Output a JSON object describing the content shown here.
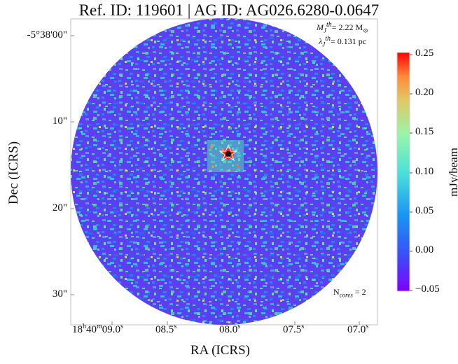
{
  "title": "Ref. ID: 119601 | AG ID: AG026.6280-0.0647",
  "annotations": {
    "mass_symbol": "M",
    "mass_sup": "th",
    "mass_sub": "J",
    "mass_value": "= 2.22 M",
    "mass_sun": "⊙",
    "length_symbol": "λ",
    "length_sup": "th",
    "length_sub": "J",
    "length_value": "= 0.131 pc",
    "ncores_label": "N",
    "ncores_sub": "cores",
    "ncores_value": " = 2"
  },
  "y_axis": {
    "label": "Dec (ICRS)",
    "ticks": [
      "-5°38'00\"",
      "10\"",
      "20\"",
      "30\""
    ]
  },
  "x_axis": {
    "label": "RA (ICRS)",
    "ticks": [
      {
        "main": "18",
        "h": "h",
        "main2": "40",
        "m": "m",
        "main3": "09.0",
        "s": "s"
      },
      {
        "main": "08.5",
        "s": "s"
      },
      {
        "main": "08.0",
        "s": "s"
      },
      {
        "main": "07.5",
        "s": "s"
      },
      {
        "main": "07.0",
        "s": "s"
      }
    ]
  },
  "colorbar": {
    "label": "mJy/beam",
    "ticks": [
      "0.25",
      "0.20",
      "0.15",
      "0.10",
      "0.05",
      "0.00",
      "−0.05"
    ],
    "range": [
      -0.05,
      0.25
    ],
    "colormap": "rainbow"
  },
  "colors": {
    "background_noise": "#5a3ef0",
    "noise_green": "#4ee0b0",
    "noise_cyan": "#3ab8e8",
    "peak_red": "#ff2a10"
  }
}
